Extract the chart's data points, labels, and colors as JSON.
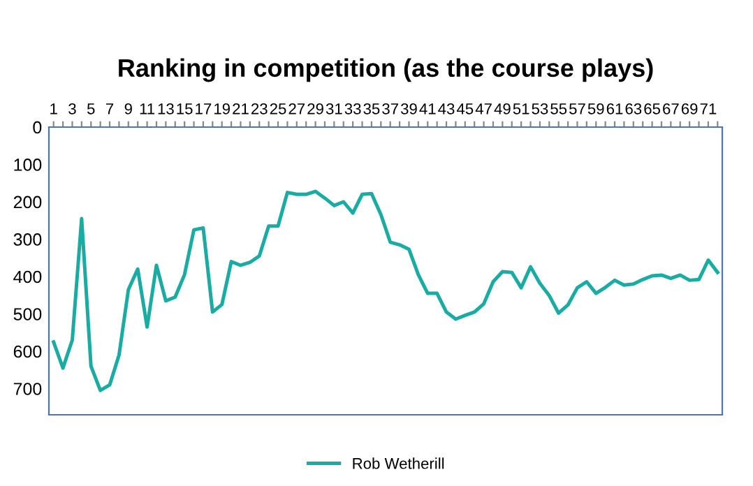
{
  "chart_data": {
    "type": "line",
    "title": "Ranking in competition (as the course plays)",
    "categories": [
      "1",
      null,
      "3",
      null,
      "5",
      null,
      "7",
      null,
      "9",
      null,
      "11",
      null,
      "13",
      null,
      "15",
      null,
      "17",
      null,
      "19",
      null,
      "21",
      null,
      "23",
      null,
      "25",
      null,
      "27",
      null,
      "29",
      null,
      "31",
      null,
      "33",
      null,
      "35",
      null,
      "37",
      null,
      "39",
      null,
      "41",
      null,
      "43",
      null,
      "45",
      null,
      "47",
      null,
      "49",
      null,
      "51",
      null,
      "53",
      null,
      "55",
      null,
      "57",
      null,
      "59",
      null,
      "61",
      null,
      "63",
      null,
      "65",
      null,
      "67",
      null,
      "69",
      null,
      "71",
      null
    ],
    "series": [
      {
        "name": "Rob Wetherill",
        "color": "#1aaba3",
        "values": [
          575,
          645,
          570,
          245,
          640,
          705,
          690,
          610,
          435,
          380,
          535,
          370,
          465,
          455,
          395,
          275,
          270,
          495,
          475,
          360,
          370,
          362,
          345,
          265,
          265,
          175,
          180,
          180,
          172,
          190,
          210,
          200,
          230,
          180,
          178,
          234,
          308,
          315,
          327,
          395,
          445,
          445,
          495,
          514,
          504,
          495,
          473,
          414,
          387,
          389,
          430,
          374,
          418,
          451,
          498,
          476,
          430,
          414,
          445,
          429,
          410,
          423,
          420,
          408,
          398,
          396,
          405,
          396,
          410,
          408,
          356,
          389
        ]
      }
    ],
    "ylim": [
      770,
      0
    ],
    "yticks": [
      0,
      100,
      200,
      300,
      400,
      500,
      600,
      700
    ],
    "grid": false,
    "legend": "bottom",
    "marker": "none",
    "line_style": "solid"
  }
}
